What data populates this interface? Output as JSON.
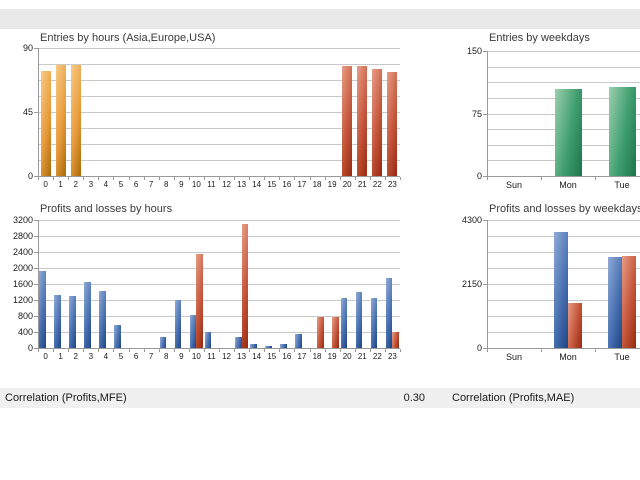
{
  "palette": {
    "orange": [
      "#f7cb85",
      "#e99c3c",
      "#a96a0a"
    ],
    "red": [
      "#e89d86",
      "#c4563c",
      "#97290f"
    ],
    "green": [
      "#9ccfae",
      "#3f9e6f",
      "#1d7549"
    ],
    "blue": [
      "#91abd6",
      "#4a72b2",
      "#1d4584"
    ]
  },
  "chart_data": [
    {
      "type": "bar",
      "title": "Entries by hours (Asia,Europe,USA)",
      "categories": [
        "0",
        "1",
        "2",
        "3",
        "4",
        "5",
        "6",
        "7",
        "8",
        "9",
        "10",
        "11",
        "12",
        "13",
        "14",
        "15",
        "16",
        "17",
        "18",
        "19",
        "20",
        "21",
        "22",
        "23"
      ],
      "series": [
        {
          "name": "asia-session-entries",
          "color": "orange",
          "values": [
            74,
            78,
            78,
            0,
            0,
            0,
            0,
            0,
            0,
            0,
            0,
            0,
            0,
            0,
            0,
            0,
            0,
            0,
            0,
            0,
            0,
            0,
            0,
            0
          ]
        },
        {
          "name": "usa-session-entries",
          "color": "red",
          "values": [
            0,
            0,
            0,
            0,
            0,
            0,
            0,
            0,
            0,
            0,
            0,
            0,
            0,
            0,
            0,
            0,
            0,
            0,
            0,
            0,
            77,
            77,
            75,
            73
          ]
        }
      ],
      "ylim": [
        0,
        90
      ],
      "yticks": [
        0,
        45,
        90
      ],
      "grid_divisions": 8,
      "xlabel": "",
      "ylabel": "",
      "legend": "none",
      "grid": true
    },
    {
      "type": "bar",
      "title": "Entries by weekdays",
      "categories": [
        "Sun",
        "Mon",
        "Tue"
      ],
      "series": [
        {
          "name": "weekday-entries",
          "color": "green",
          "values": [
            0,
            105,
            107
          ]
        }
      ],
      "ylim": [
        0,
        150
      ],
      "yticks": [
        0,
        75,
        150
      ],
      "grid_divisions": 8,
      "xlabel": "",
      "ylabel": "",
      "legend": "none",
      "grid": true
    },
    {
      "type": "bar",
      "title": "Profits and losses by hours",
      "categories": [
        "0",
        "1",
        "2",
        "3",
        "4",
        "5",
        "6",
        "7",
        "8",
        "9",
        "10",
        "11",
        "12",
        "13",
        "14",
        "15",
        "16",
        "17",
        "18",
        "19",
        "20",
        "21",
        "22",
        "23"
      ],
      "series": [
        {
          "name": "profits",
          "color": "blue",
          "values": [
            1930,
            1330,
            1300,
            1660,
            1420,
            580,
            0,
            0,
            270,
            1190,
            820,
            400,
            0,
            280,
            100,
            40,
            100,
            350,
            0,
            0,
            1250,
            1410,
            1250,
            1750
          ]
        },
        {
          "name": "losses",
          "color": "red",
          "values": [
            0,
            0,
            0,
            0,
            0,
            0,
            0,
            0,
            0,
            0,
            2350,
            0,
            0,
            3100,
            0,
            0,
            0,
            0,
            770,
            780,
            0,
            0,
            0,
            400
          ]
        }
      ],
      "ylim": [
        0,
        3200
      ],
      "yticks": [
        0,
        400,
        800,
        1200,
        1600,
        2000,
        2400,
        2800,
        3200
      ],
      "grid_divisions": 8,
      "xlabel": "",
      "ylabel": "",
      "legend": "none",
      "grid": true
    },
    {
      "type": "bar",
      "title": "Profits and losses by weekdays",
      "categories": [
        "Sun",
        "Mon",
        "Tue"
      ],
      "series": [
        {
          "name": "profits",
          "color": "blue",
          "values": [
            0,
            3890,
            3060
          ]
        },
        {
          "name": "losses",
          "color": "red",
          "values": [
            0,
            1520,
            3090
          ]
        }
      ],
      "ylim": [
        0,
        4300
      ],
      "yticks": [
        0,
        2150,
        4300
      ],
      "grid_divisions": 8,
      "xlabel": "",
      "ylabel": "",
      "legend": "none",
      "grid": true
    }
  ],
  "footer": {
    "left_label": "Correlation (Profits,MFE)",
    "left_value": "0.30",
    "right_label": "Correlation (Profits,MAE)"
  }
}
